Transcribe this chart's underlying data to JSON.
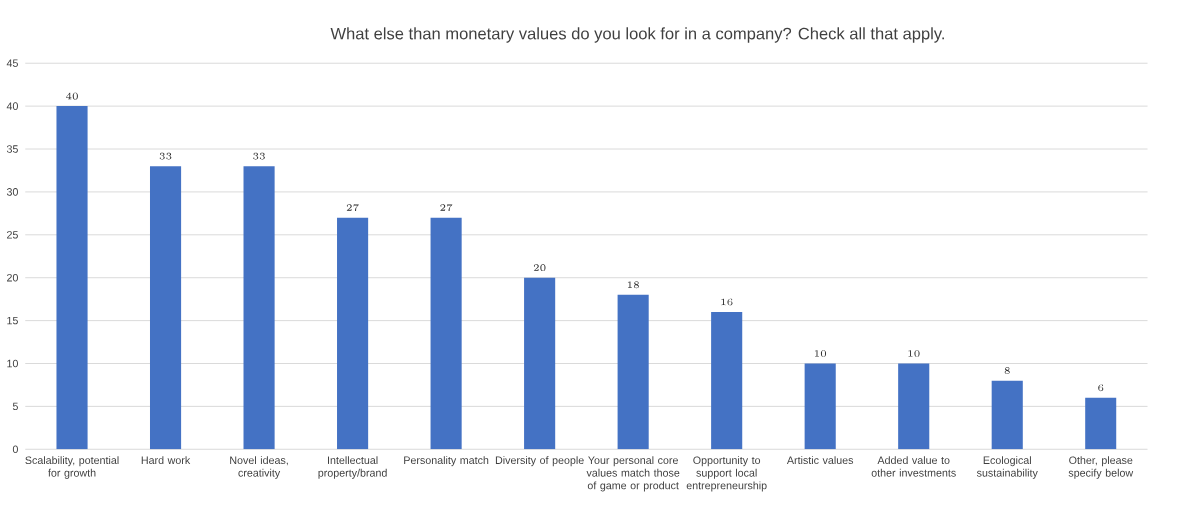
{
  "chart_data": {
    "type": "bar",
    "title": "What else than monetary values do you look for in a company? Check all that apply.",
    "categories": [
      "Scalability, potential for growth",
      "Hard work",
      "Novel ideas, creativity",
      "Intellectual property/brand",
      "Personality match",
      "Diversity of people",
      "Your personal core values match those of game or product",
      "Opportunity to support local entrepreneurship",
      "Artistic values",
      "Added value to other investments",
      "Ecological sustainability",
      "Other, please specify below"
    ],
    "values": [
      40,
      33,
      33,
      27,
      27,
      20,
      18,
      16,
      10,
      10,
      8,
      6
    ],
    "color": "#4472c4",
    "ylim": [
      0,
      45
    ],
    "yticks": [
      0,
      5,
      10,
      15,
      20,
      25,
      30,
      35,
      40,
      45
    ],
    "grid": "y",
    "data_labels": true
  }
}
